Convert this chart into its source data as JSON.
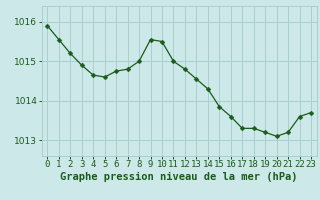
{
  "x": [
    0,
    1,
    2,
    3,
    4,
    5,
    6,
    7,
    8,
    9,
    10,
    11,
    12,
    13,
    14,
    15,
    16,
    17,
    18,
    19,
    20,
    21,
    22,
    23
  ],
  "y": [
    1015.9,
    1015.55,
    1015.2,
    1014.9,
    1014.65,
    1014.6,
    1014.75,
    1014.8,
    1015.0,
    1015.55,
    1015.5,
    1015.0,
    1014.8,
    1014.55,
    1014.3,
    1013.85,
    1013.6,
    1013.3,
    1013.3,
    1013.2,
    1013.1,
    1013.2,
    1013.6,
    1013.7
  ],
  "line_color": "#1a5c1a",
  "marker": "D",
  "marker_size": 2.5,
  "bg_color": "#cce8e8",
  "grid_color": "#aacfcf",
  "xlabel": "Graphe pression niveau de la mer (hPa)",
  "xlabel_fontsize": 7.5,
  "xlabel_color": "#1a5c1a",
  "xtick_labels": [
    "0",
    "1",
    "2",
    "3",
    "4",
    "5",
    "6",
    "7",
    "8",
    "9",
    "10",
    "11",
    "12",
    "13",
    "14",
    "15",
    "16",
    "17",
    "18",
    "19",
    "20",
    "21",
    "22",
    "23"
  ],
  "ytick_values": [
    1013,
    1014,
    1015,
    1016
  ],
  "ylim": [
    1012.6,
    1016.4
  ],
  "xlim": [
    -0.5,
    23.5
  ],
  "tick_fontsize": 6.5,
  "tick_color": "#1a5c1a"
}
